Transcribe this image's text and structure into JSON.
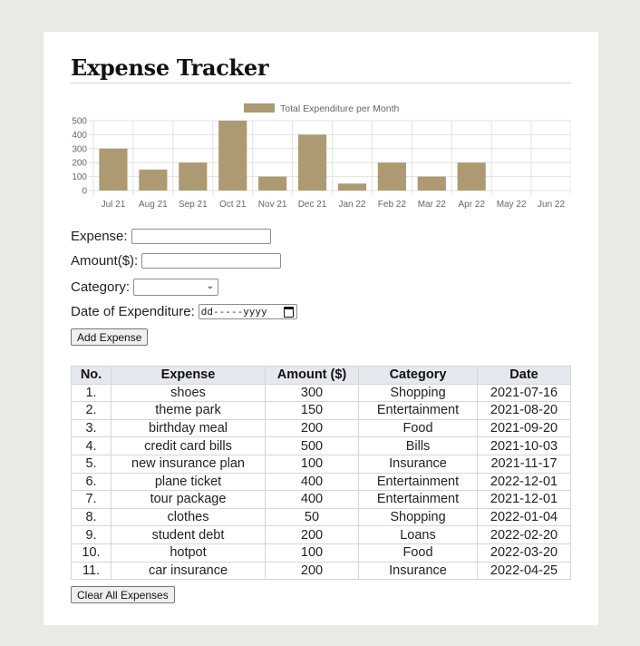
{
  "app": {
    "title": "Expense Tracker"
  },
  "chart_data": {
    "type": "bar",
    "legend": "Total Expenditure per Month",
    "legend_color": "#ad9a72",
    "categories": [
      "Jul 21",
      "Aug 21",
      "Sep 21",
      "Oct 21",
      "Nov 21",
      "Dec 21",
      "Jan 22",
      "Feb 22",
      "Mar 22",
      "Apr 22",
      "May 22",
      "Jun 22"
    ],
    "values": [
      300,
      150,
      200,
      500,
      100,
      400,
      50,
      200,
      100,
      200,
      0,
      0
    ],
    "yticks": [
      "500",
      "400",
      "300",
      "200",
      "100",
      "0"
    ],
    "ylim": [
      0,
      500
    ],
    "grid": true,
    "bar_color": "#ad9a72"
  },
  "form": {
    "expense_label": "Expense:",
    "expense_value": "",
    "amount_label": "Amount($):",
    "amount_value": "",
    "category_label": "Category:",
    "category_value": "",
    "date_label": "Date of Expenditure:",
    "date_placeholder": "dd-----yyyy",
    "add_button": "Add Expense"
  },
  "table": {
    "headers": [
      "No.",
      "Expense",
      "Amount ($)",
      "Category",
      "Date"
    ],
    "rows": [
      [
        "1.",
        "shoes",
        "300",
        "Shopping",
        "2021-07-16"
      ],
      [
        "2.",
        "theme park",
        "150",
        "Entertainment",
        "2021-08-20"
      ],
      [
        "3.",
        "birthday meal",
        "200",
        "Food",
        "2021-09-20"
      ],
      [
        "4.",
        "credit card bills",
        "500",
        "Bills",
        "2021-10-03"
      ],
      [
        "5.",
        "new insurance plan",
        "100",
        "Insurance",
        "2021-11-17"
      ],
      [
        "6.",
        "plane ticket",
        "400",
        "Entertainment",
        "2022-12-01"
      ],
      [
        "7.",
        "tour package",
        "400",
        "Entertainment",
        "2021-12-01"
      ],
      [
        "8.",
        "clothes",
        "50",
        "Shopping",
        "2022-01-04"
      ],
      [
        "9.",
        "student debt",
        "200",
        "Loans",
        "2022-02-20"
      ],
      [
        "10.",
        "hotpot",
        "100",
        "Food",
        "2022-03-20"
      ],
      [
        "11.",
        "car insurance",
        "200",
        "Insurance",
        "2022-04-25"
      ]
    ]
  },
  "clear_button": "Clear All Expenses"
}
